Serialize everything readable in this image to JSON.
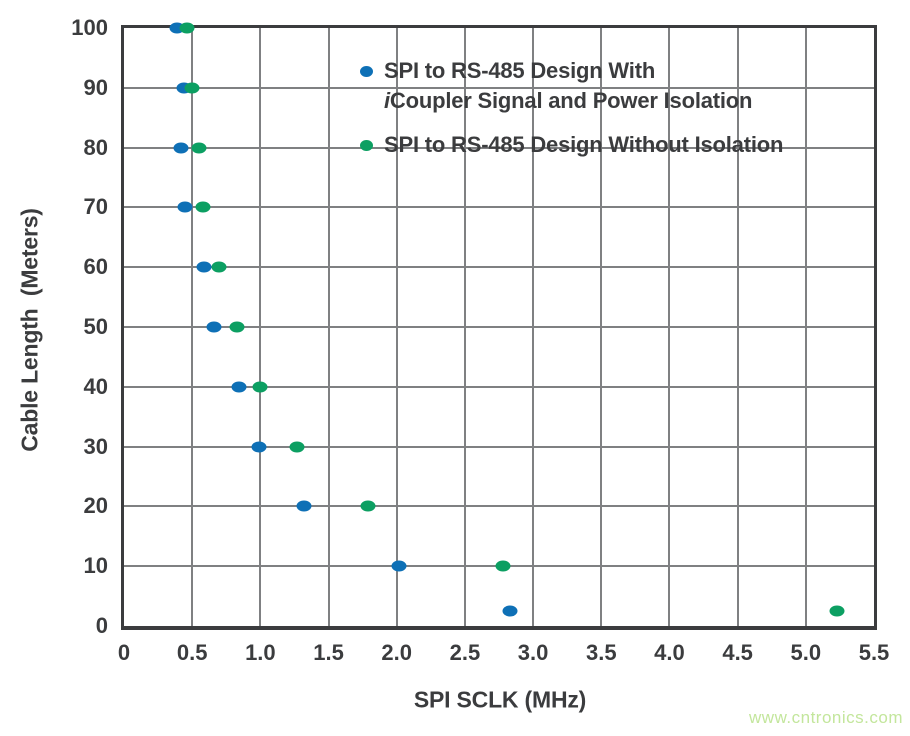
{
  "chart_data": {
    "type": "scatter",
    "title": "",
    "xlabel": "SPI SCLK (MHz)",
    "ylabel": "Cable Length  (Meters)",
    "xlim": [
      0,
      5.5
    ],
    "ylim": [
      0,
      100
    ],
    "grid": true,
    "legend_position": "top-right-inside",
    "x_ticks": [
      0,
      0.5,
      1.0,
      1.5,
      2.0,
      2.5,
      3.0,
      3.5,
      4.0,
      4.5,
      5.0,
      5.5
    ],
    "x_tick_labels": [
      "0",
      "0.5",
      "1.0",
      "1.5",
      "2.0",
      "2.5",
      "3.0",
      "3.5",
      "4.0",
      "4.5",
      "5.0",
      "5.5"
    ],
    "y_ticks": [
      0,
      10,
      20,
      30,
      40,
      50,
      60,
      70,
      80,
      90,
      100
    ],
    "y_tick_labels": [
      "0",
      "10",
      "20",
      "30",
      "40",
      "50",
      "60",
      "70",
      "80",
      "90",
      "100"
    ],
    "series": [
      {
        "name": "SPI to RS-485 Design With iCoupler Signal and Power Isolation",
        "color": "#0e70b6",
        "points": [
          {
            "x": 0.39,
            "y": 100
          },
          {
            "x": 0.44,
            "y": 90
          },
          {
            "x": 0.42,
            "y": 80
          },
          {
            "x": 0.45,
            "y": 70
          },
          {
            "x": 0.59,
            "y": 60
          },
          {
            "x": 0.66,
            "y": 50
          },
          {
            "x": 0.84,
            "y": 40
          },
          {
            "x": 0.99,
            "y": 30
          },
          {
            "x": 1.32,
            "y": 20
          },
          {
            "x": 2.02,
            "y": 10
          },
          {
            "x": 2.83,
            "y": 2.5
          }
        ]
      },
      {
        "name": "SPI to RS-485 Design Without Isolation",
        "color": "#0c9f62",
        "points": [
          {
            "x": 0.46,
            "y": 100
          },
          {
            "x": 0.5,
            "y": 90
          },
          {
            "x": 0.55,
            "y": 80
          },
          {
            "x": 0.58,
            "y": 70
          },
          {
            "x": 0.7,
            "y": 60
          },
          {
            "x": 0.83,
            "y": 50
          },
          {
            "x": 1.0,
            "y": 40
          },
          {
            "x": 1.27,
            "y": 30
          },
          {
            "x": 1.79,
            "y": 20
          },
          {
            "x": 2.78,
            "y": 10
          },
          {
            "x": 5.23,
            "y": 2.5
          }
        ]
      }
    ]
  },
  "axes": {
    "x_label": "SPI SCLK (MHz)",
    "y_label": "Cable Length  (Meters)"
  },
  "legend": {
    "items": [
      {
        "line1": "SPI to RS-485 Design With",
        "line2_italic": "i",
        "line2": "Coupler Signal and Power Isolation"
      },
      {
        "line1": "SPI to RS-485 Design Without Isolation"
      }
    ]
  },
  "watermark": "www.cntronics.com",
  "colors": {
    "blue": "#0e70b6",
    "green": "#0c9f62",
    "text": "#3b3c3e",
    "frame": "#3b3c3e",
    "grid": "#7f8082",
    "watermark": "#c3e69c"
  }
}
